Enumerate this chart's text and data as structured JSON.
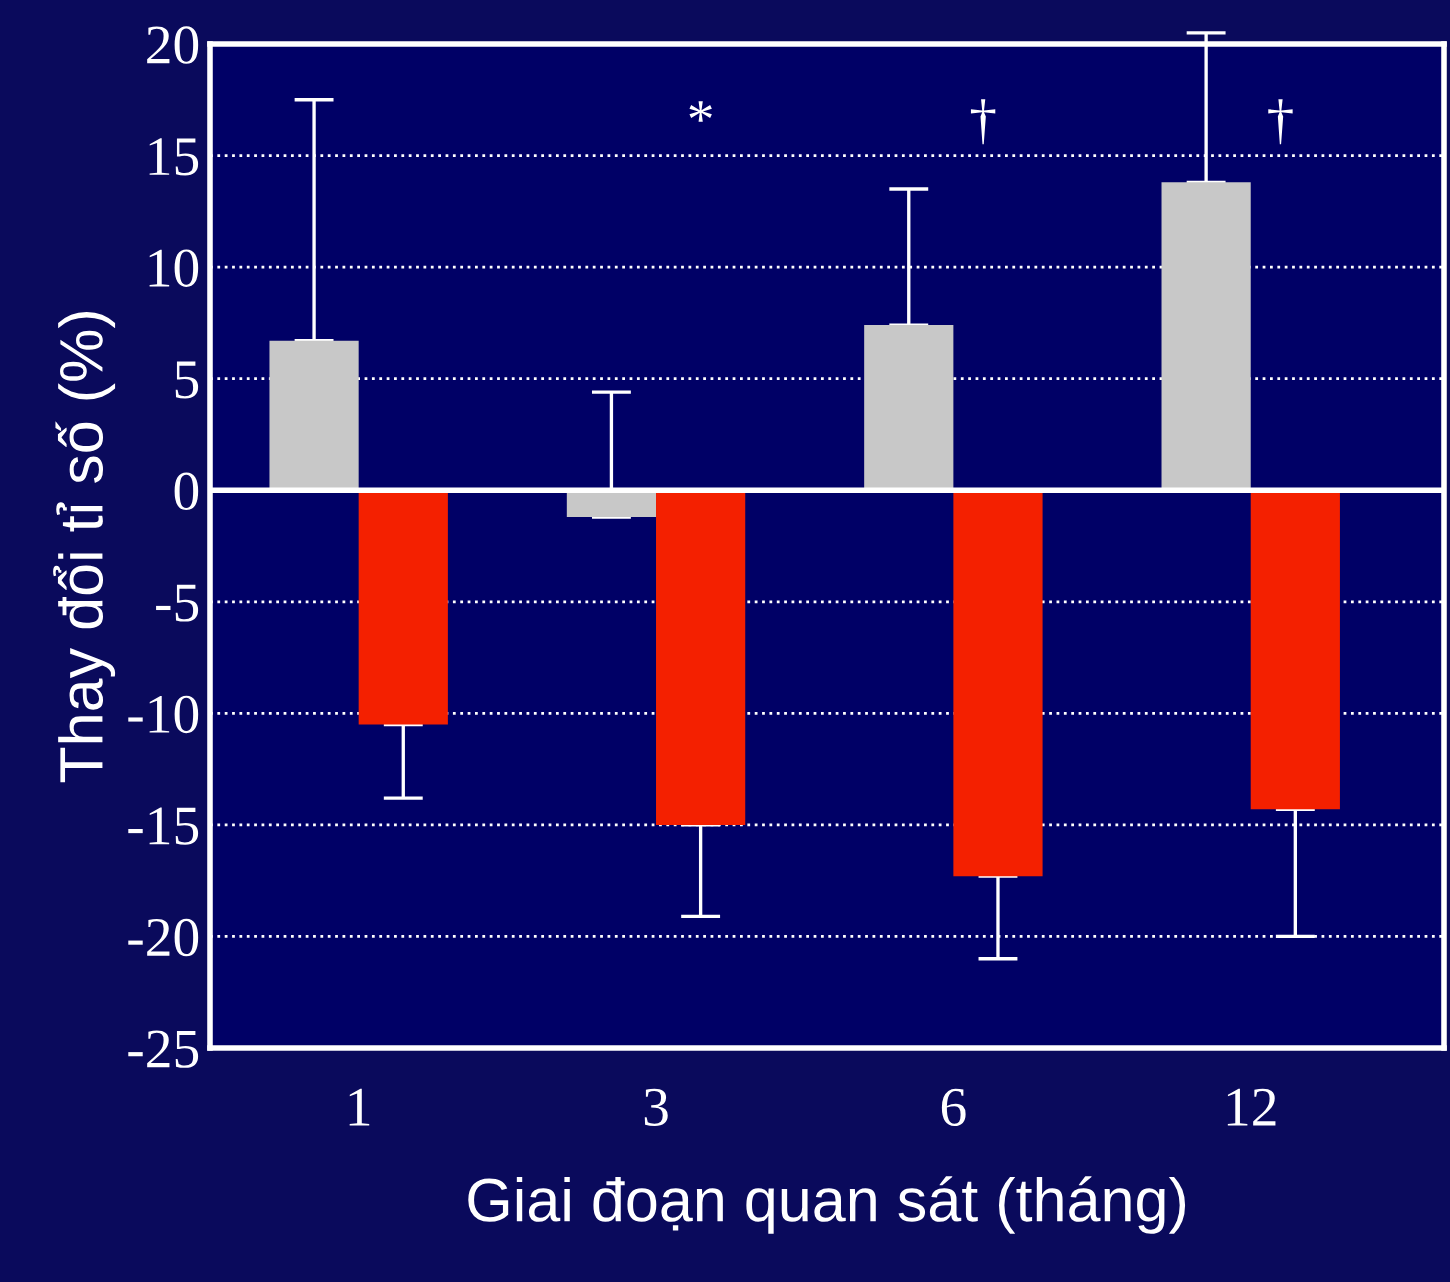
{
  "chart_data": {
    "type": "bar",
    "xlabel": "Giai đoạn quan sát (tháng)",
    "ylabel": "Thay đổi tỉ số (%)",
    "categories": [
      "1",
      "3",
      "6",
      "12"
    ],
    "series": [
      {
        "color": "#c8c8c8",
        "values": [
          6.7,
          -1.2,
          7.4,
          13.8
        ],
        "errors": [
          [
            6.7,
            17.5
          ],
          [
            -1.2,
            4.4
          ],
          [
            7.4,
            13.5
          ],
          [
            13.8,
            20.5
          ]
        ]
      },
      {
        "color": "#f42000",
        "values": [
          -10.5,
          -15.0,
          -17.3,
          -14.3
        ],
        "errors": [
          [
            -13.8,
            -10.5
          ],
          [
            -19.1,
            -15.0
          ],
          [
            -21.0,
            -17.3
          ],
          [
            -20.0,
            -14.3
          ]
        ]
      }
    ],
    "ylim": [
      -25,
      20
    ],
    "yticks": [
      -25,
      -20,
      -15,
      -10,
      -5,
      0,
      5,
      10,
      15,
      20
    ],
    "grid": "y",
    "ref_lines": [
      {
        "axis": "y",
        "value": 0,
        "color": "#ffffff",
        "line_style": "solid"
      }
    ],
    "annotations": [
      "*",
      "†",
      "†"
    ],
    "legend": false
  }
}
